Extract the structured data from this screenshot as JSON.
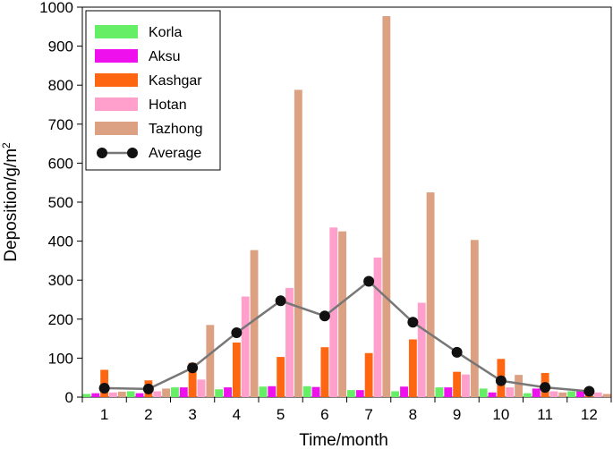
{
  "chart_data": {
    "type": "bar",
    "title": "",
    "xlabel": "Time/month",
    "ylabel": "Deposition/g/m",
    "ylabel_superscript": "2",
    "ylim": [
      0,
      1000
    ],
    "yticks": [
      0,
      100,
      200,
      300,
      400,
      500,
      600,
      700,
      800,
      900,
      1000
    ],
    "categories": [
      "1",
      "2",
      "3",
      "4",
      "5",
      "6",
      "7",
      "8",
      "9",
      "10",
      "11",
      "12"
    ],
    "legend_position": "top-left",
    "series": [
      {
        "name": "Korla",
        "color": "#66ee66",
        "values": [
          8,
          15,
          25,
          20,
          27,
          28,
          18,
          15,
          25,
          22,
          10,
          15
        ]
      },
      {
        "name": "Aksu",
        "color": "#ee11ee",
        "values": [
          10,
          10,
          25,
          25,
          28,
          26,
          18,
          27,
          25,
          12,
          22,
          16
        ]
      },
      {
        "name": "Kashgar",
        "color": "#ff6611",
        "values": [
          70,
          43,
          88,
          140,
          103,
          128,
          113,
          148,
          65,
          98,
          62,
          8
        ]
      },
      {
        "name": "Hotan",
        "color": "#ffa0cc",
        "values": [
          12,
          15,
          45,
          258,
          280,
          435,
          358,
          242,
          58,
          25,
          15,
          12
        ]
      },
      {
        "name": "Tazhong",
        "color": "#dba182",
        "values": [
          14,
          22,
          185,
          377,
          788,
          425,
          977,
          525,
          403,
          57,
          12,
          8
        ]
      }
    ],
    "average": {
      "name": "Average",
      "color": "#777777",
      "marker_color": "#111111",
      "values": [
        23,
        21,
        75,
        165,
        247,
        208,
        297,
        192,
        115,
        42,
        25,
        15
      ]
    }
  }
}
